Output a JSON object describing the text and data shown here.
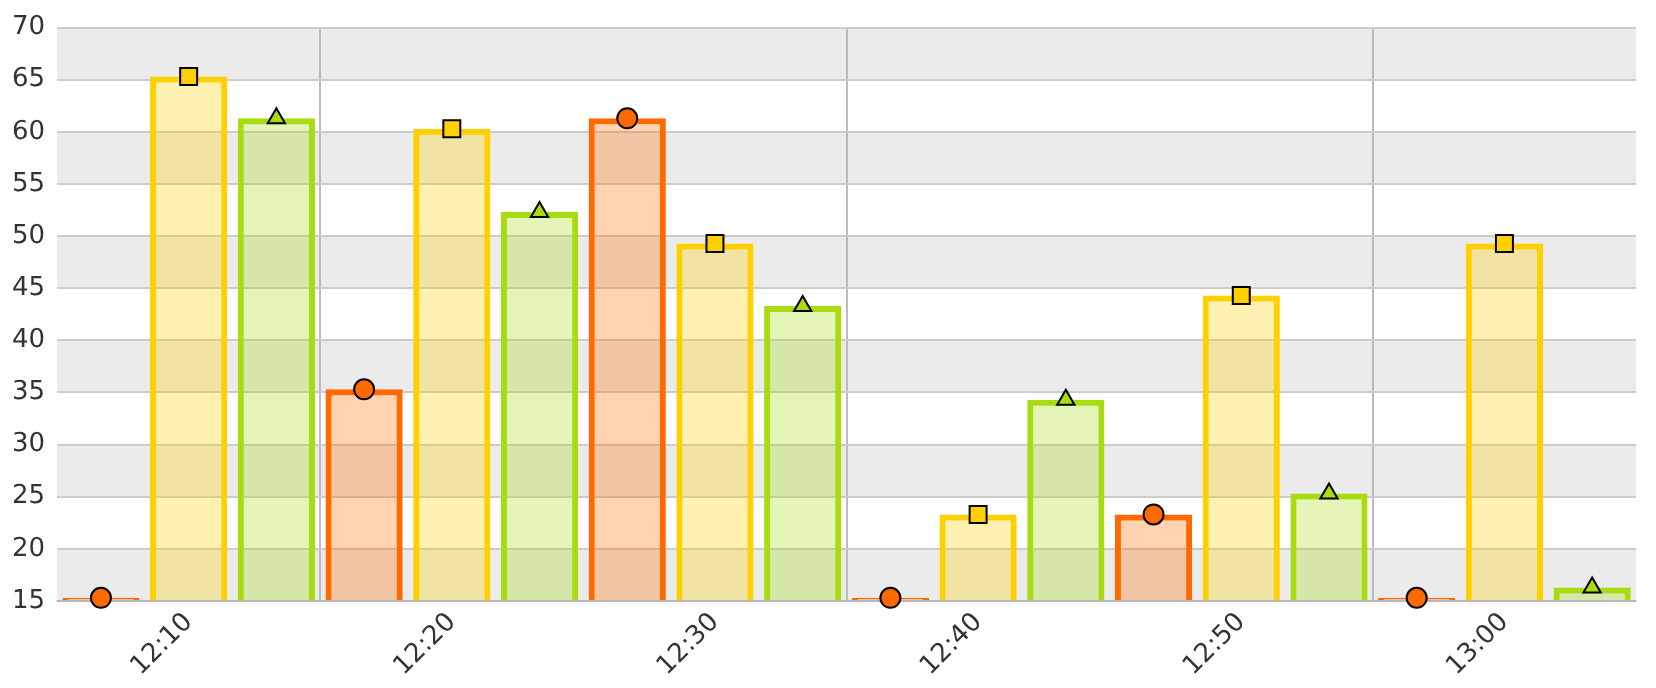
{
  "chart_data": {
    "type": "bar",
    "categories": [
      "12:10",
      "12:20",
      "12:30",
      "12:40",
      "12:50",
      "13:00"
    ],
    "series": [
      {
        "color": "#ff6a00",
        "values": [
          15.3,
          35.3,
          61.3,
          15.3,
          23.3,
          15.3
        ]
      },
      {
        "color": "#ffd000",
        "values": [
          65.3,
          60.3,
          49.3,
          23.3,
          44.3,
          49.3
        ]
      },
      {
        "color": "#a8dc10",
        "values": [
          61.3,
          52.3,
          43.3,
          34.3,
          25.3,
          16.3
        ]
      },
      {
        "type": "scatter",
        "marker": "circle",
        "color": "#ff6a00",
        "x": [
          "12:10",
          "12:20",
          "12:30",
          "12:40",
          "12:50",
          "13:00"
        ],
        "values": [
          15.3,
          35.3,
          61.3,
          15.3,
          23.3,
          15.3
        ]
      },
      {
        "type": "scatter",
        "marker": "square",
        "color": "#ffd000",
        "x": [
          "12:10",
          "12:20",
          "12:30",
          "12:40",
          "12:50",
          "13:00"
        ],
        "values": [
          65.3,
          60.3,
          49.3,
          23.3,
          44.3,
          49.3
        ]
      },
      {
        "type": "scatter",
        "marker": "triangle",
        "color": "#a8dc10",
        "x": [
          "12:10",
          "12:20",
          "12:30",
          "12:40",
          "12:50",
          "13:00"
        ],
        "values": [
          61.3,
          52.3,
          43.3,
          34.3,
          25.3,
          16.3
        ]
      }
    ],
    "ylim": [
      15,
      70
    ],
    "yticks": [
      15,
      20,
      25,
      30,
      35,
      40,
      45,
      50,
      55,
      60,
      65,
      70
    ],
    "grid": true,
    "legend": false
  }
}
